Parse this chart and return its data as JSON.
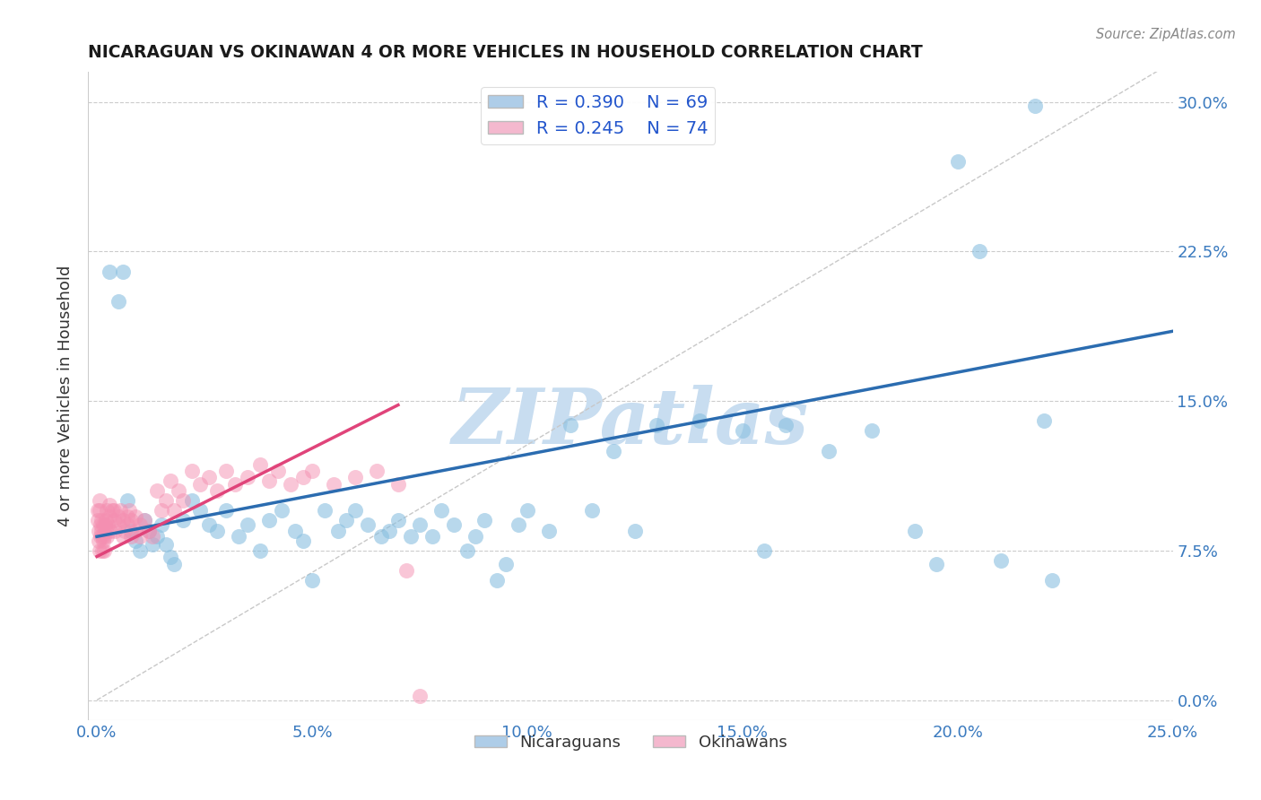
{
  "title": "NICARAGUAN VS OKINAWAN 4 OR MORE VEHICLES IN HOUSEHOLD CORRELATION CHART",
  "source": "Source: ZipAtlas.com",
  "ylabel": "4 or more Vehicles in Household",
  "xmin": 0.0,
  "xmax": 0.25,
  "ymin": -0.01,
  "ymax": 0.315,
  "xticks": [
    0.0,
    0.05,
    0.1,
    0.15,
    0.2,
    0.25
  ],
  "xtick_labels": [
    "0.0%",
    "5.0%",
    "10.0%",
    "15.0%",
    "20.0%",
    "25.0%"
  ],
  "yticks": [
    0.0,
    0.075,
    0.15,
    0.225,
    0.3
  ],
  "ytick_labels": [
    "0.0%",
    "7.5%",
    "15.0%",
    "22.5%",
    "30.0%"
  ],
  "blue_R": 0.39,
  "blue_N": 69,
  "pink_R": 0.245,
  "pink_N": 74,
  "blue_marker_color": "#89bfe0",
  "blue_line_color": "#2b6cb0",
  "pink_marker_color": "#f48fb1",
  "pink_line_color": "#e0447a",
  "legend_blue_face": "#aecde8",
  "legend_pink_face": "#f4b8ce",
  "watermark": "ZIPatlas",
  "watermark_color": "#c8ddf0",
  "blue_line_x0": 0.0,
  "blue_line_y0": 0.082,
  "blue_line_x1": 0.25,
  "blue_line_y1": 0.185,
  "pink_line_x0": 0.0,
  "pink_line_y0": 0.072,
  "pink_line_x1": 0.07,
  "pink_line_y1": 0.148,
  "blue_x": [
    0.003,
    0.005,
    0.006,
    0.007,
    0.008,
    0.009,
    0.01,
    0.011,
    0.012,
    0.013,
    0.014,
    0.015,
    0.016,
    0.017,
    0.018,
    0.02,
    0.022,
    0.024,
    0.026,
    0.028,
    0.03,
    0.033,
    0.035,
    0.038,
    0.04,
    0.043,
    0.046,
    0.048,
    0.05,
    0.053,
    0.056,
    0.058,
    0.06,
    0.063,
    0.066,
    0.068,
    0.07,
    0.073,
    0.075,
    0.078,
    0.08,
    0.083,
    0.086,
    0.088,
    0.09,
    0.093,
    0.095,
    0.098,
    0.1,
    0.105,
    0.11,
    0.115,
    0.12,
    0.125,
    0.13,
    0.14,
    0.15,
    0.155,
    0.16,
    0.17,
    0.18,
    0.19,
    0.195,
    0.2,
    0.205,
    0.21,
    0.218,
    0.22,
    0.222
  ],
  "blue_y": [
    0.215,
    0.2,
    0.215,
    0.1,
    0.085,
    0.08,
    0.075,
    0.09,
    0.085,
    0.078,
    0.082,
    0.088,
    0.078,
    0.072,
    0.068,
    0.09,
    0.1,
    0.095,
    0.088,
    0.085,
    0.095,
    0.082,
    0.088,
    0.075,
    0.09,
    0.095,
    0.085,
    0.08,
    0.06,
    0.095,
    0.085,
    0.09,
    0.095,
    0.088,
    0.082,
    0.085,
    0.09,
    0.082,
    0.088,
    0.082,
    0.095,
    0.088,
    0.075,
    0.082,
    0.09,
    0.06,
    0.068,
    0.088,
    0.095,
    0.085,
    0.138,
    0.095,
    0.125,
    0.085,
    0.138,
    0.14,
    0.135,
    0.075,
    0.138,
    0.125,
    0.135,
    0.085,
    0.068,
    0.27,
    0.225,
    0.07,
    0.298,
    0.14,
    0.06
  ],
  "pink_x": [
    0.0002,
    0.0003,
    0.0004,
    0.0005,
    0.0006,
    0.0006,
    0.0007,
    0.0008,
    0.0009,
    0.001,
    0.001,
    0.0012,
    0.0013,
    0.0014,
    0.0015,
    0.0016,
    0.0017,
    0.0018,
    0.002,
    0.002,
    0.0022,
    0.0023,
    0.0025,
    0.003,
    0.003,
    0.0032,
    0.0035,
    0.004,
    0.004,
    0.0042,
    0.005,
    0.005,
    0.0055,
    0.006,
    0.006,
    0.0065,
    0.007,
    0.007,
    0.0075,
    0.008,
    0.008,
    0.009,
    0.009,
    0.01,
    0.01,
    0.011,
    0.012,
    0.013,
    0.014,
    0.015,
    0.016,
    0.017,
    0.018,
    0.019,
    0.02,
    0.022,
    0.024,
    0.026,
    0.028,
    0.03,
    0.032,
    0.035,
    0.038,
    0.04,
    0.042,
    0.045,
    0.048,
    0.05,
    0.055,
    0.06,
    0.065,
    0.07,
    0.072,
    0.075
  ],
  "pink_y": [
    0.09,
    0.095,
    0.085,
    0.08,
    0.075,
    0.1,
    0.095,
    0.082,
    0.088,
    0.085,
    0.09,
    0.075,
    0.082,
    0.088,
    0.08,
    0.075,
    0.082,
    0.088,
    0.085,
    0.09,
    0.095,
    0.082,
    0.088,
    0.092,
    0.098,
    0.085,
    0.095,
    0.09,
    0.095,
    0.085,
    0.092,
    0.088,
    0.095,
    0.082,
    0.09,
    0.085,
    0.092,
    0.088,
    0.095,
    0.082,
    0.09,
    0.085,
    0.092,
    0.082,
    0.088,
    0.09,
    0.085,
    0.082,
    0.105,
    0.095,
    0.1,
    0.11,
    0.095,
    0.105,
    0.1,
    0.115,
    0.108,
    0.112,
    0.105,
    0.115,
    0.108,
    0.112,
    0.118,
    0.11,
    0.115,
    0.108,
    0.112,
    0.115,
    0.108,
    0.112,
    0.115,
    0.108,
    0.065,
    0.002
  ]
}
